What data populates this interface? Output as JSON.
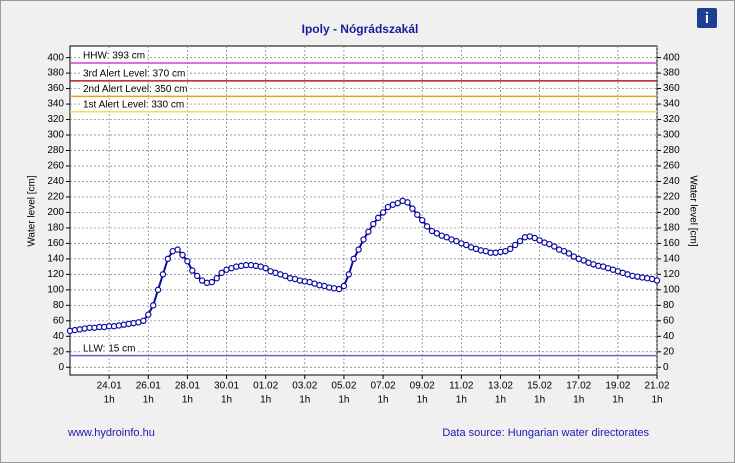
{
  "chart_data": {
    "type": "line",
    "title": "Ipoly - Nógrádszakál",
    "y_label": "Water level [cm]",
    "y2_label": "Water level [cm]",
    "footer_left": "www.hydroinfo.hu",
    "footer_right": "Data source: Hungarian water directorates",
    "xlim": [
      0,
      120
    ],
    "xticks": [
      {
        "value": 8,
        "label": "24.01"
      },
      {
        "value": 16,
        "label": "26.01"
      },
      {
        "value": 24,
        "label": "28.01"
      },
      {
        "value": 32,
        "label": "30.01"
      },
      {
        "value": 40,
        "label": "01.02"
      },
      {
        "value": 48,
        "label": "03.02"
      },
      {
        "value": 56,
        "label": "05.02"
      },
      {
        "value": 64,
        "label": "07.02"
      },
      {
        "value": 72,
        "label": "09.02"
      },
      {
        "value": 80,
        "label": "11.02"
      },
      {
        "value": 88,
        "label": "13.02"
      },
      {
        "value": 96,
        "label": "15.02"
      },
      {
        "value": 104,
        "label": "17.02"
      },
      {
        "value": 112,
        "label": "19.02"
      },
      {
        "value": 120,
        "label": "21.02"
      }
    ],
    "xtick_sublabel": "1h",
    "ylim": [
      -10,
      415
    ],
    "yticks": [
      0,
      20,
      40,
      60,
      80,
      100,
      120,
      140,
      160,
      180,
      200,
      220,
      240,
      260,
      280,
      300,
      320,
      340,
      360,
      380,
      400
    ],
    "y2lim": [
      -10,
      415
    ],
    "y2ticks": [
      0,
      20,
      40,
      60,
      80,
      100,
      120,
      140,
      160,
      180,
      200,
      220,
      240,
      260,
      280,
      300,
      320,
      340,
      360,
      380,
      400
    ],
    "grid": true,
    "reference_lines": [
      {
        "label": "HHW: 393 cm",
        "value": 393,
        "color": "#d040d0"
      },
      {
        "label": "3rd Alert Level: 370 cm",
        "value": 370,
        "color": "#b02020"
      },
      {
        "label": "2nd Alert Level: 350 cm",
        "value": 350,
        "color": "#e8a020"
      },
      {
        "label": "1st Alert Level: 330 cm",
        "value": 330,
        "color": "#e8e060"
      },
      {
        "label": "LLW: 15 cm",
        "value": 15,
        "color": "#6060e0"
      }
    ],
    "series": [
      {
        "color": "#0a0aa0",
        "values": [
          47,
          48,
          49,
          50,
          51,
          51,
          52,
          52,
          53,
          53,
          54,
          55,
          56,
          57,
          58,
          60,
          68,
          80,
          100,
          120,
          140,
          150,
          152,
          145,
          137,
          125,
          118,
          112,
          109,
          110,
          115,
          122,
          126,
          128,
          130,
          131,
          132,
          132,
          131,
          130,
          128,
          124,
          122,
          120,
          118,
          115,
          114,
          112,
          111,
          110,
          108,
          106,
          105,
          103,
          102,
          101,
          105,
          120,
          140,
          152,
          165,
          175,
          185,
          193,
          200,
          207,
          210,
          212,
          215,
          213,
          205,
          197,
          190,
          182,
          176,
          173,
          170,
          168,
          165,
          163,
          160,
          158,
          155,
          153,
          151,
          150,
          148,
          148,
          149,
          150,
          153,
          158,
          163,
          168,
          169,
          167,
          164,
          161,
          159,
          156,
          152,
          150,
          147,
          143,
          140,
          138,
          135,
          133,
          131,
          130,
          128,
          126,
          124,
          122,
          120,
          118,
          117,
          116,
          115,
          114,
          112
        ]
      }
    ]
  }
}
